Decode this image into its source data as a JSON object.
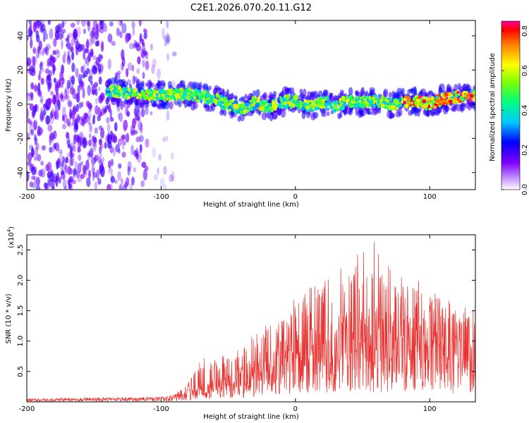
{
  "title": "C2E1.2026.070.20.11.G12",
  "colors": {
    "snr_line": "#e8312e",
    "colormap": [
      "#ffffff",
      "#8000ff",
      "#0000ff",
      "#00c8ff",
      "#00ff7f",
      "#80ff00",
      "#ffff00",
      "#ff8000",
      "#ff0000",
      "#ff00a0"
    ]
  },
  "chart_data": [
    {
      "type": "heatmap",
      "title": "C2E1.2026.070.20.11.G12",
      "xlabel": "Height of straight line (km)",
      "ylabel": "Frequency (Hz)",
      "xlim": [
        -200,
        134
      ],
      "ylim": [
        -50,
        49
      ],
      "xticks": [
        -200,
        -100,
        0,
        100
      ],
      "yticks": [
        -40,
        -20,
        0,
        20,
        40
      ],
      "ridge": {
        "x_start": -140,
        "x": [
          -140,
          -120,
          -100,
          -80,
          -60,
          -50,
          -40,
          -30,
          -20,
          -10,
          0,
          10,
          20,
          30,
          40,
          50,
          60,
          70,
          80,
          90,
          100,
          110,
          120,
          134
        ],
        "freq": [
          8,
          6,
          5,
          6,
          3,
          0,
          -3,
          1,
          -2,
          1,
          2,
          -1,
          1,
          -1,
          2,
          1,
          2,
          0,
          1,
          2,
          0,
          3,
          4,
          5
        ]
      },
      "noise_band": [
        -200,
        -90
      ],
      "colorbar": {
        "label": "Normalized spectral amplitude",
        "range": [
          0.0,
          0.85
        ],
        "ticks": [
          "0.0",
          "0.2",
          "0.4",
          "0.6",
          "0.8"
        ]
      }
    },
    {
      "type": "line",
      "xlabel": "Height of straight line (km)",
      "ylabel": "SNR (10 * v/v)",
      "scale_note": "(x10",
      "scale_exp": "4",
      "scale_close": ")",
      "xlim": [
        -200,
        134
      ],
      "ylim": [
        0,
        2.75
      ],
      "xticks": [
        -200,
        -100,
        0,
        100
      ],
      "yticks": [
        "0.5",
        "1.0",
        "1.5",
        "2.0",
        "2.5"
      ],
      "series": [
        {
          "name": "SNR",
          "x": [
            -200,
            -150,
            -100,
            -90,
            -80,
            -70,
            -60,
            -50,
            -40,
            -30,
            -20,
            -10,
            0,
            10,
            20,
            30,
            40,
            50,
            60,
            70,
            80,
            90,
            100,
            110,
            120,
            134
          ],
          "mean": [
            0.03,
            0.04,
            0.05,
            0.07,
            0.15,
            0.2,
            0.25,
            0.3,
            0.42,
            0.5,
            0.62,
            0.7,
            0.78,
            0.85,
            0.9,
            0.95,
            1.0,
            1.02,
            1.05,
            1.03,
            0.98,
            0.95,
            0.9,
            0.88,
            0.9,
            0.95
          ],
          "peak": [
            0.06,
            0.07,
            0.08,
            0.12,
            0.3,
            0.75,
            0.7,
            0.8,
            1.0,
            1.1,
            1.3,
            1.35,
            1.75,
            1.9,
            2.0,
            2.2,
            2.3,
            2.55,
            2.7,
            2.3,
            2.05,
            2.0,
            1.95,
            1.8,
            1.65,
            1.5
          ]
        }
      ]
    }
  ]
}
